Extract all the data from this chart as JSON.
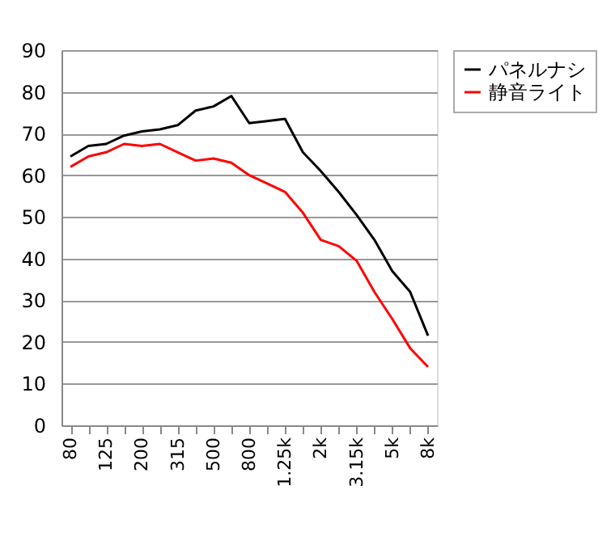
{
  "chart_data": {
    "type": "line",
    "categories": [
      "80",
      null,
      "125",
      null,
      "200",
      null,
      "315",
      null,
      "500",
      null,
      "800",
      null,
      "1.25k",
      null,
      "2k",
      null,
      "3.15k",
      null,
      "5k",
      null,
      "8k"
    ],
    "series": [
      {
        "name": "パネルナシ",
        "color": "#000000",
        "values": [
          64.5,
          67,
          67.5,
          69.5,
          70.5,
          71,
          72,
          75.5,
          76.5,
          79,
          72.5,
          73,
          73.5,
          65.5,
          61,
          56,
          50.5,
          44.5,
          37,
          32,
          21.5
        ]
      },
      {
        "name": "静音ライト",
        "color": "#ff0000",
        "values": [
          62,
          64.5,
          65.5,
          67.5,
          67,
          67.5,
          65.5,
          63.5,
          64,
          63,
          60,
          58,
          56,
          51,
          44.5,
          43,
          39.5,
          32,
          25.5,
          18.5,
          14
        ]
      }
    ],
    "ylim": [
      0,
      90
    ],
    "yticks": [
      0,
      10,
      20,
      30,
      40,
      50,
      60,
      70,
      80,
      90
    ],
    "grid": "y",
    "legend": "right",
    "marker": "none",
    "line_style": "solid"
  }
}
